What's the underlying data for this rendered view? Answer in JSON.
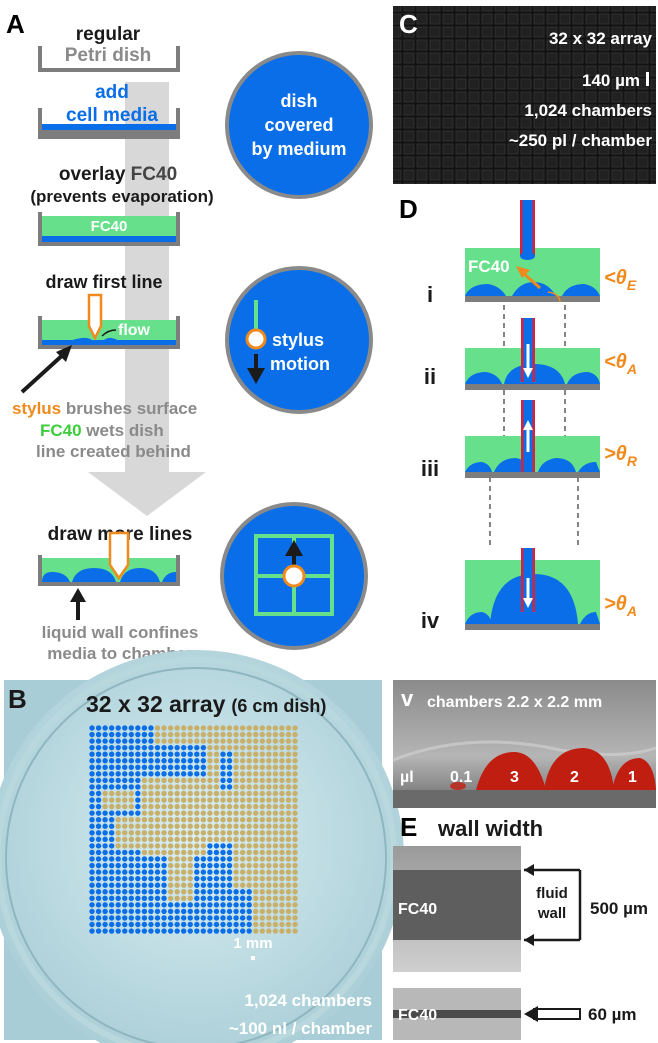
{
  "panel_labels": {
    "a": "A",
    "b": "B",
    "c": "C",
    "d": "D",
    "e": "E"
  },
  "colors": {
    "medium_blue": "#0a6ee8",
    "fc40_green": "#66e08a",
    "orange": "#f08a1c",
    "gray_text": "#8a8a8a",
    "dish_gray": "#7d7d7d",
    "arrow_gray": "#d8d8d8",
    "beige_chamber": "#c8b06a"
  },
  "panel_a": {
    "step1": {
      "line1": "regular",
      "line2": "Petri dish"
    },
    "step2": {
      "line1": "add",
      "line2": "cell media"
    },
    "step3": {
      "prefix": "overlay ",
      "fc40": "FC40",
      "line2": "(prevents evaporation)",
      "dish_label": "FC40"
    },
    "step4": {
      "title": "draw first line",
      "flow": "flow",
      "cap1_a": "stylus",
      "cap1_b": " brushes surface",
      "cap2_a": "FC40",
      "cap2_b": " wets dish",
      "cap3": "line created behind"
    },
    "step5": {
      "title": "draw more lines",
      "cap1": "liquid wall confines",
      "cap2": "media to chamber"
    },
    "circle1": {
      "line1": "dish",
      "line2": "covered",
      "line3": "by medium"
    },
    "circle2": {
      "line1": "stylus",
      "line2": "motion"
    }
  },
  "panel_b": {
    "title": "32 x 32 array",
    "subtitle": "(6 cm dish)",
    "scale": "1 mm",
    "chambers": "1,024 chambers",
    "volume": "~100 nl / chamber"
  },
  "panel_c": {
    "line1": "32 x 32 array",
    "line2": "140 µm",
    "line3": "1,024 chambers",
    "line4": "~250 pl / chamber"
  },
  "panel_d": {
    "rows": [
      {
        "roman": "i",
        "angle": "<θ",
        "sub": "E",
        "fc40": "FC40"
      },
      {
        "roman": "ii",
        "angle": "<θ",
        "sub": "A"
      },
      {
        "roman": "iii",
        "angle": ">θ",
        "sub": "R"
      },
      {
        "roman": "iv",
        "angle": ">θ",
        "sub": "A"
      }
    ]
  },
  "panel_v": {
    "roman": "v",
    "title": "chambers 2.2 x 2.2 mm",
    "unit": "µl",
    "volumes": [
      "0.1",
      "3",
      "2",
      "1"
    ]
  },
  "panel_e": {
    "title": "wall width",
    "fc40_a": "FC40",
    "fc40_b": "FC40",
    "fluid": "fluid",
    "wall": "wall",
    "width_500": "500 µm",
    "width_60": "60 µm"
  }
}
